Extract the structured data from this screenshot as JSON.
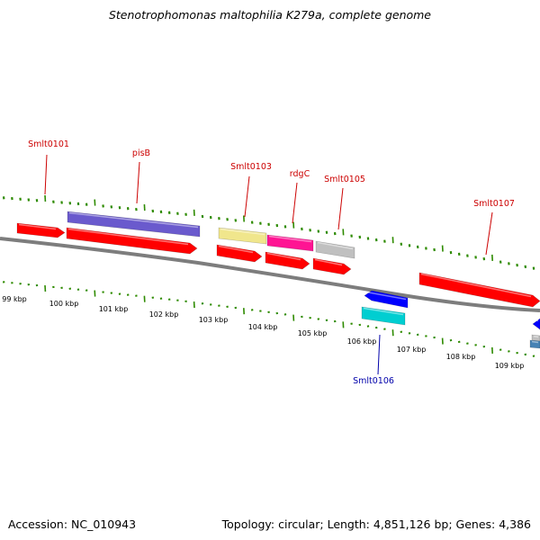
{
  "title": "Stenotrophomonas maltophilia K279a, complete genome",
  "footer": {
    "accession": "Accession: NC_010943",
    "stats": "Topology: circular; Length: 4,851,126 bp; Genes: 4,386"
  },
  "colors": {
    "forward_label": "#cc0000",
    "reverse_label": "#0000aa",
    "tick": "#2e8b00",
    "backbone": "#7d7d7d",
    "red_gene": "#ff0000",
    "purple_gene": "#6a5acd",
    "yellow_gene": "#f0e68c",
    "magenta_gene": "#ff1493",
    "grey_gene": "#c0c0c0",
    "blue_gene": "#0000ff",
    "cyan_gene": "#00ced1",
    "steel_gene": "#4682b4"
  },
  "scale_labels": [
    "99 kbp",
    "100 kbp",
    "101 kbp",
    "102 kbp",
    "103 kbp",
    "104 kbp",
    "105 kbp",
    "106 kbp",
    "107 kbp",
    "108 kbp",
    "109 kbp"
  ],
  "gene_labels": [
    {
      "name": "Smlt0101",
      "strand": "forward"
    },
    {
      "name": "pisB",
      "strand": "forward"
    },
    {
      "name": "Smlt0103",
      "strand": "forward"
    },
    {
      "name": "rdgC",
      "strand": "forward"
    },
    {
      "name": "Smlt0105",
      "strand": "forward"
    },
    {
      "name": "Smlt0107",
      "strand": "forward"
    },
    {
      "name": "Smlt0106",
      "strand": "reverse"
    }
  ]
}
